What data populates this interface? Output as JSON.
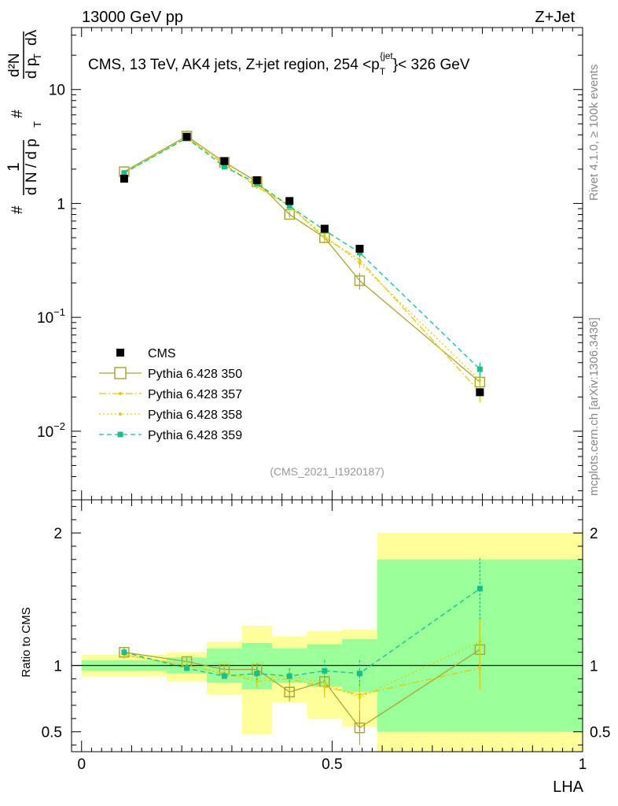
{
  "header": {
    "left": "13000 GeV pp",
    "right": "Z+Jet"
  },
  "side_text": {
    "rivet": "Rivet 4.1.0, ≥ 100k events",
    "mcplots": "mcplots.cern.ch [arXiv:1306.3436]"
  },
  "chart_data": [
    {
      "type": "scatter",
      "panel": "main",
      "title": "CMS, 13 TeV, AK4 jets, Z+jet region, 254 <p_T^{jet}< 326 GeV",
      "title_parts": {
        "prefix": "CMS, 13 TeV, AK4 jets, Z+jet region, 254 <p",
        "sub": "T",
        "sup": "{jet",
        "close": "}",
        "suffix": "< 326 GeV"
      },
      "ylabel": "1/dN/dp_T dN/dp_T dλ",
      "ylabel_parts": {
        "hash": "#",
        "one": "1",
        "dN": "d N / d p",
        "T": "T",
        "d2N": "d²N",
        "dpdl": "d p",
        "dl": "dλ"
      },
      "yscale": "log",
      "ylim": [
        0.0025,
        35
      ],
      "y_ticks": [
        {
          "value": 0.01,
          "base": "10",
          "exp": "−2"
        },
        {
          "value": 0.1,
          "base": "10",
          "exp": "−1"
        },
        {
          "value": 1,
          "base": "1",
          "exp": ""
        },
        {
          "value": 10,
          "base": "10",
          "exp": ""
        }
      ],
      "xlim": [
        -0.02,
        1.0
      ],
      "watermark": "(CMS_2021_I1920187)",
      "legend_position": "lower-left",
      "x": [
        0.085,
        0.21,
        0.285,
        0.35,
        0.415,
        0.485,
        0.555,
        0.795
      ],
      "series": [
        {
          "name": "CMS",
          "style": "data",
          "color": "#000000",
          "values": [
            1.65,
            3.85,
            2.35,
            1.6,
            1.05,
            0.6,
            0.4,
            0.022
          ]
        },
        {
          "name": "Pythia 6.428 350",
          "style": "open-square",
          "color": "#a8a832",
          "values": [
            1.9,
            3.9,
            2.3,
            1.55,
            0.8,
            0.5,
            0.21,
            0.027
          ],
          "errors": [
            0.06,
            0.1,
            0.07,
            0.06,
            0.05,
            0.04,
            0.035,
            0.004
          ]
        },
        {
          "name": "Pythia 6.428 357",
          "style": "dashdot",
          "color": "#e8c800",
          "values": [
            1.85,
            3.8,
            2.2,
            1.4,
            0.95,
            0.5,
            0.32,
            0.022
          ],
          "errors": [
            0.05,
            0.1,
            0.07,
            0.06,
            0.05,
            0.04,
            0.03,
            0.004
          ]
        },
        {
          "name": "Pythia 6.428 358",
          "style": "dotted",
          "color": "#d4d400",
          "values": [
            1.85,
            3.8,
            2.2,
            1.45,
            0.95,
            0.52,
            0.3,
            0.028
          ],
          "errors": [
            0.05,
            0.1,
            0.07,
            0.06,
            0.05,
            0.04,
            0.03,
            0.004
          ]
        },
        {
          "name": "Pythia 6.428 359",
          "style": "dashed",
          "color": "#16c08c",
          "values": [
            1.85,
            3.75,
            2.1,
            1.5,
            0.95,
            0.58,
            0.37,
            0.035
          ],
          "errors": [
            0.05,
            0.1,
            0.07,
            0.06,
            0.05,
            0.04,
            0.03,
            0.005
          ]
        }
      ]
    },
    {
      "type": "scatter",
      "panel": "ratio",
      "ylabel": "Ratio to CMS",
      "xlabel": "LHA",
      "xlim": [
        -0.02,
        1.0
      ],
      "ylim": [
        0.35,
        2.25
      ],
      "x_ticks": [
        {
          "value": 0,
          "label": "0"
        },
        {
          "value": 0.5,
          "label": "0.5"
        },
        {
          "value": 1,
          "label": "1"
        }
      ],
      "y_ticks": [
        {
          "value": 0.5,
          "label": "0.5"
        },
        {
          "value": 1,
          "label": "1"
        },
        {
          "value": 2,
          "label": "2"
        }
      ],
      "bins": [
        {
          "lo": 0.0,
          "hi": 0.17,
          "green": [
            0.96,
            1.04
          ],
          "yellow": [
            0.92,
            1.08
          ]
        },
        {
          "lo": 0.17,
          "hi": 0.25,
          "green": [
            0.94,
            1.06
          ],
          "yellow": [
            0.88,
            1.1
          ]
        },
        {
          "lo": 0.25,
          "hi": 0.32,
          "green": [
            0.87,
            1.13
          ],
          "yellow": [
            0.78,
            1.18
          ]
        },
        {
          "lo": 0.32,
          "hi": 0.38,
          "green": [
            0.82,
            1.17
          ],
          "yellow": [
            0.48,
            1.3
          ]
        },
        {
          "lo": 0.38,
          "hi": 0.45,
          "green": [
            0.87,
            1.13
          ],
          "yellow": [
            0.72,
            1.22
          ]
        },
        {
          "lo": 0.45,
          "hi": 0.52,
          "green": [
            0.84,
            1.16
          ],
          "yellow": [
            0.6,
            1.26
          ]
        },
        {
          "lo": 0.52,
          "hi": 0.59,
          "green": [
            0.8,
            1.2
          ],
          "yellow": [
            0.54,
            1.27
          ]
        },
        {
          "lo": 0.59,
          "hi": 1.0,
          "green": [
            0.5,
            1.8
          ],
          "yellow": [
            0.0,
            2.0
          ]
        }
      ],
      "x": [
        0.085,
        0.21,
        0.285,
        0.35,
        0.415,
        0.485,
        0.555,
        0.795
      ],
      "series": [
        {
          "name": "Pythia 6.428 350",
          "color": "#a8a832",
          "values": [
            1.1,
            1.03,
            0.97,
            0.97,
            0.8,
            0.88,
            0.53,
            1.12
          ],
          "errors": [
            0.03,
            0.03,
            0.03,
            0.05,
            0.07,
            0.08,
            0.13,
            0.2
          ]
        },
        {
          "name": "Pythia 6.428 357",
          "color": "#e8c800",
          "values": [
            1.08,
            1.0,
            0.94,
            0.88,
            0.9,
            0.84,
            0.78,
            0.98
          ],
          "errors": [
            0.03,
            0.03,
            0.03,
            0.05,
            0.06,
            0.08,
            0.1,
            0.16
          ]
        },
        {
          "name": "Pythia 6.428 358",
          "color": "#d4d400",
          "values": [
            1.08,
            1.0,
            0.94,
            0.9,
            0.92,
            0.87,
            0.76,
            1.18
          ],
          "errors": [
            0.03,
            0.03,
            0.03,
            0.05,
            0.06,
            0.08,
            0.1,
            0.18
          ]
        },
        {
          "name": "Pythia 6.428 359",
          "color": "#16c08c",
          "values": [
            1.1,
            0.98,
            0.92,
            0.94,
            0.92,
            0.96,
            0.94,
            1.58
          ],
          "errors": [
            0.03,
            0.03,
            0.03,
            0.05,
            0.06,
            0.08,
            0.1,
            0.23
          ]
        }
      ]
    }
  ]
}
